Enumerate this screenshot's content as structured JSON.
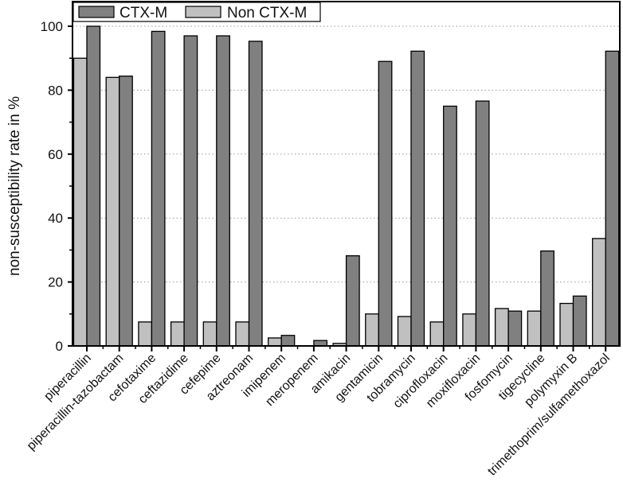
{
  "chart_data": {
    "type": "bar",
    "title": "",
    "xlabel": "",
    "ylabel": "non-susceptibility rate in %",
    "ylim": [
      0,
      100
    ],
    "yticks": [
      0,
      20,
      40,
      60,
      80,
      100
    ],
    "grid": "horizontal dotted",
    "legend_position": "top-left",
    "categories": [
      "piperacillin",
      "piperacillin-tazobactam",
      "cefotaxime",
      "ceftazidime",
      "cefepime",
      "aztreonam",
      "imipenem",
      "meropenem",
      "amikacin",
      "gentamicin",
      "tobramycin",
      "ciprofloxacin",
      "moxifloxacin",
      "fosfomycin",
      "tigecycline",
      "polymyxin B",
      "trimethoprim/sulfamethoxazol"
    ],
    "series": [
      {
        "name": "Non CTX-M",
        "color": "#c0c0c0",
        "values": [
          90,
          84,
          7.5,
          7.5,
          7.5,
          7.5,
          2.5,
          0,
          0.8,
          10,
          9.2,
          7.5,
          10,
          11.7,
          10.9,
          13.3,
          33.6
        ]
      },
      {
        "name": "CTX-M",
        "color": "#808080",
        "values": [
          100,
          84.4,
          98.4,
          97,
          97,
          95.3,
          3.3,
          1.7,
          28.2,
          89,
          92.2,
          75,
          76.6,
          10.9,
          29.7,
          15.6,
          92.2
        ]
      }
    ],
    "legend_order": [
      "CTX-M",
      "Non CTX-M"
    ]
  }
}
